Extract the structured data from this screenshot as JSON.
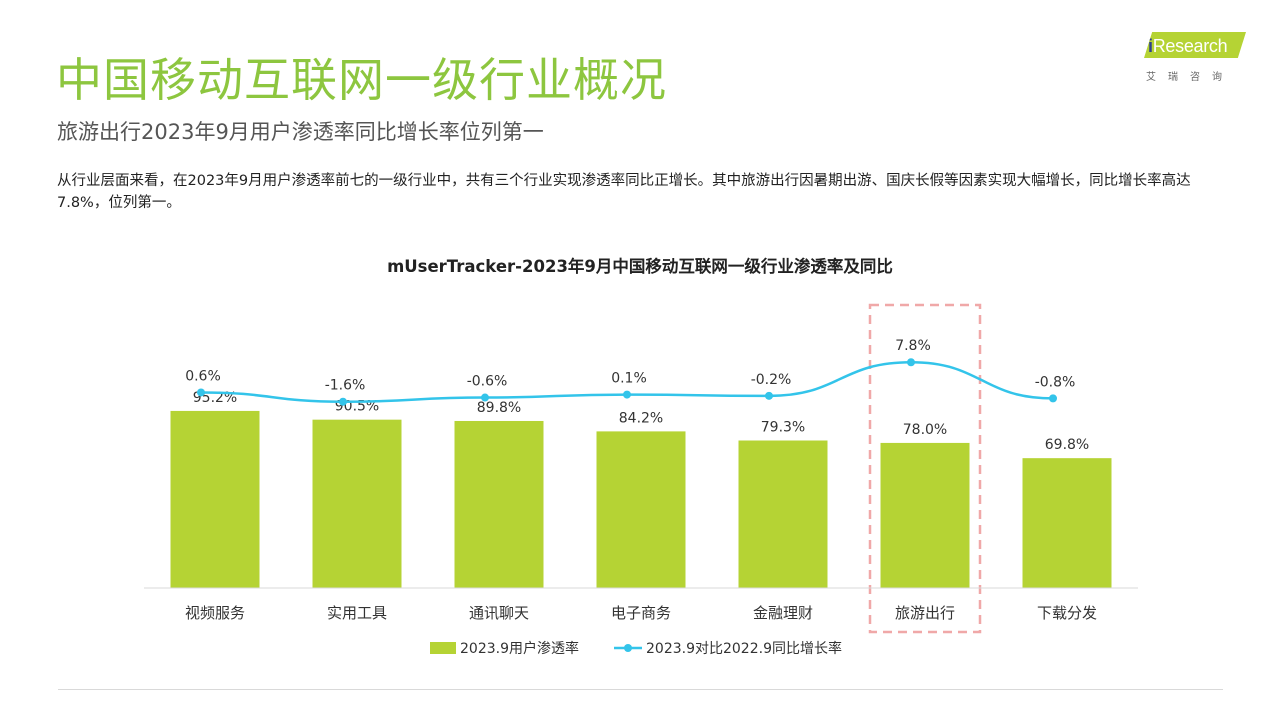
{
  "header": {
    "title": "中国移动互联网一级行业概况",
    "subtitle": "旅游出行2023年9月用户渗透率同比增长率位列第一",
    "paragraph": "从行业层面来看，在2023年9月用户渗透率前七的一级行业中，共有三个行业实现渗透率同比正增长。其中旅游出行因暑期出游、国庆长假等因素实现大幅增长，同比增长率高达7.8%，位列第一。"
  },
  "logo": {
    "prefix": "i",
    "name": "Research",
    "sub": "艾瑞咨询",
    "icon": "iresearch-logo-icon"
  },
  "colors": {
    "bar": "#b5d334",
    "line": "#33c4ea",
    "highlight": "#f0a8a8",
    "title": "#8dc63f"
  },
  "chart_data": {
    "type": "bar",
    "title": "mUserTracker-2023年9月中国移动互联网一级行业渗透率及同比",
    "categories": [
      "视频服务",
      "实用工具",
      "通讯聊天",
      "电子商务",
      "金融理财",
      "旅游出行",
      "下载分发"
    ],
    "series": [
      {
        "name": "2023.9用户渗透率",
        "type": "bar",
        "values": [
          95.2,
          90.5,
          89.8,
          84.2,
          79.3,
          78.0,
          69.8
        ],
        "labels": [
          "95.2%",
          "90.5%",
          "89.8%",
          "84.2%",
          "79.3%",
          "78.0%",
          "69.8%"
        ]
      },
      {
        "name": "2023.9对比2022.9同比增长率",
        "type": "line",
        "values": [
          0.6,
          -1.6,
          -0.6,
          0.1,
          -0.2,
          7.8,
          -0.8
        ],
        "labels": [
          "0.6%",
          "-1.6%",
          "-0.6%",
          "0.1%",
          "-0.2%",
          "7.8%",
          "-0.8%"
        ]
      }
    ],
    "highlight_category": "旅游出行",
    "legend_position": "bottom",
    "grid": false
  }
}
